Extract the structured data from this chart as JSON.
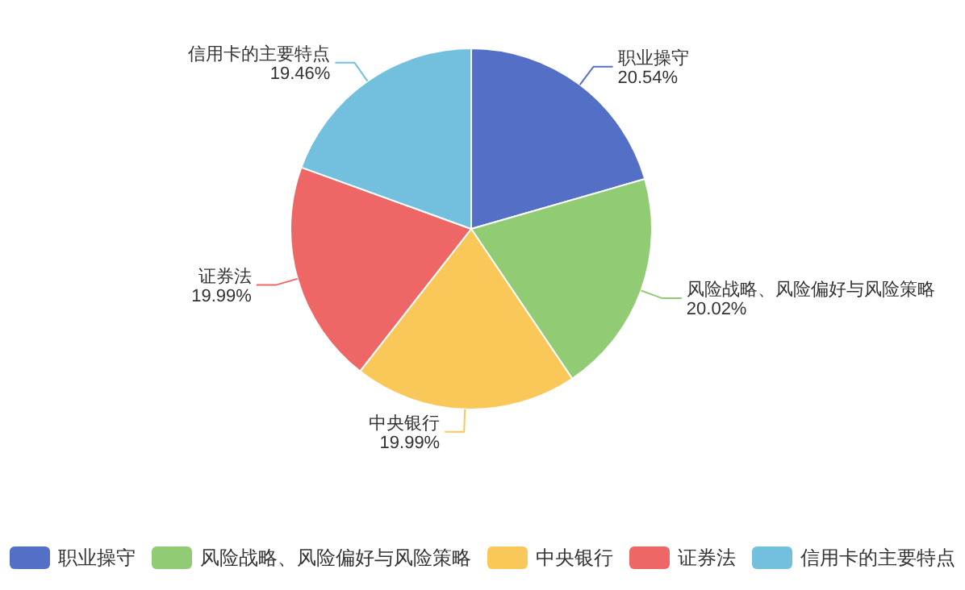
{
  "chart_data": {
    "type": "pie",
    "categories": [
      "职业操守",
      "风险战略、风险偏好与风险策略",
      "中央银行",
      "证券法",
      "信用卡的主要特点"
    ],
    "values": [
      20.54,
      20.02,
      19.99,
      19.99,
      19.46
    ],
    "colors": [
      "#5470c6",
      "#91cc75",
      "#fac858",
      "#ee6666",
      "#73c0de"
    ],
    "value_labels": [
      "20.54%",
      "20.02%",
      "19.99%",
      "19.99%",
      "19.46%"
    ],
    "legend": "bottom"
  }
}
